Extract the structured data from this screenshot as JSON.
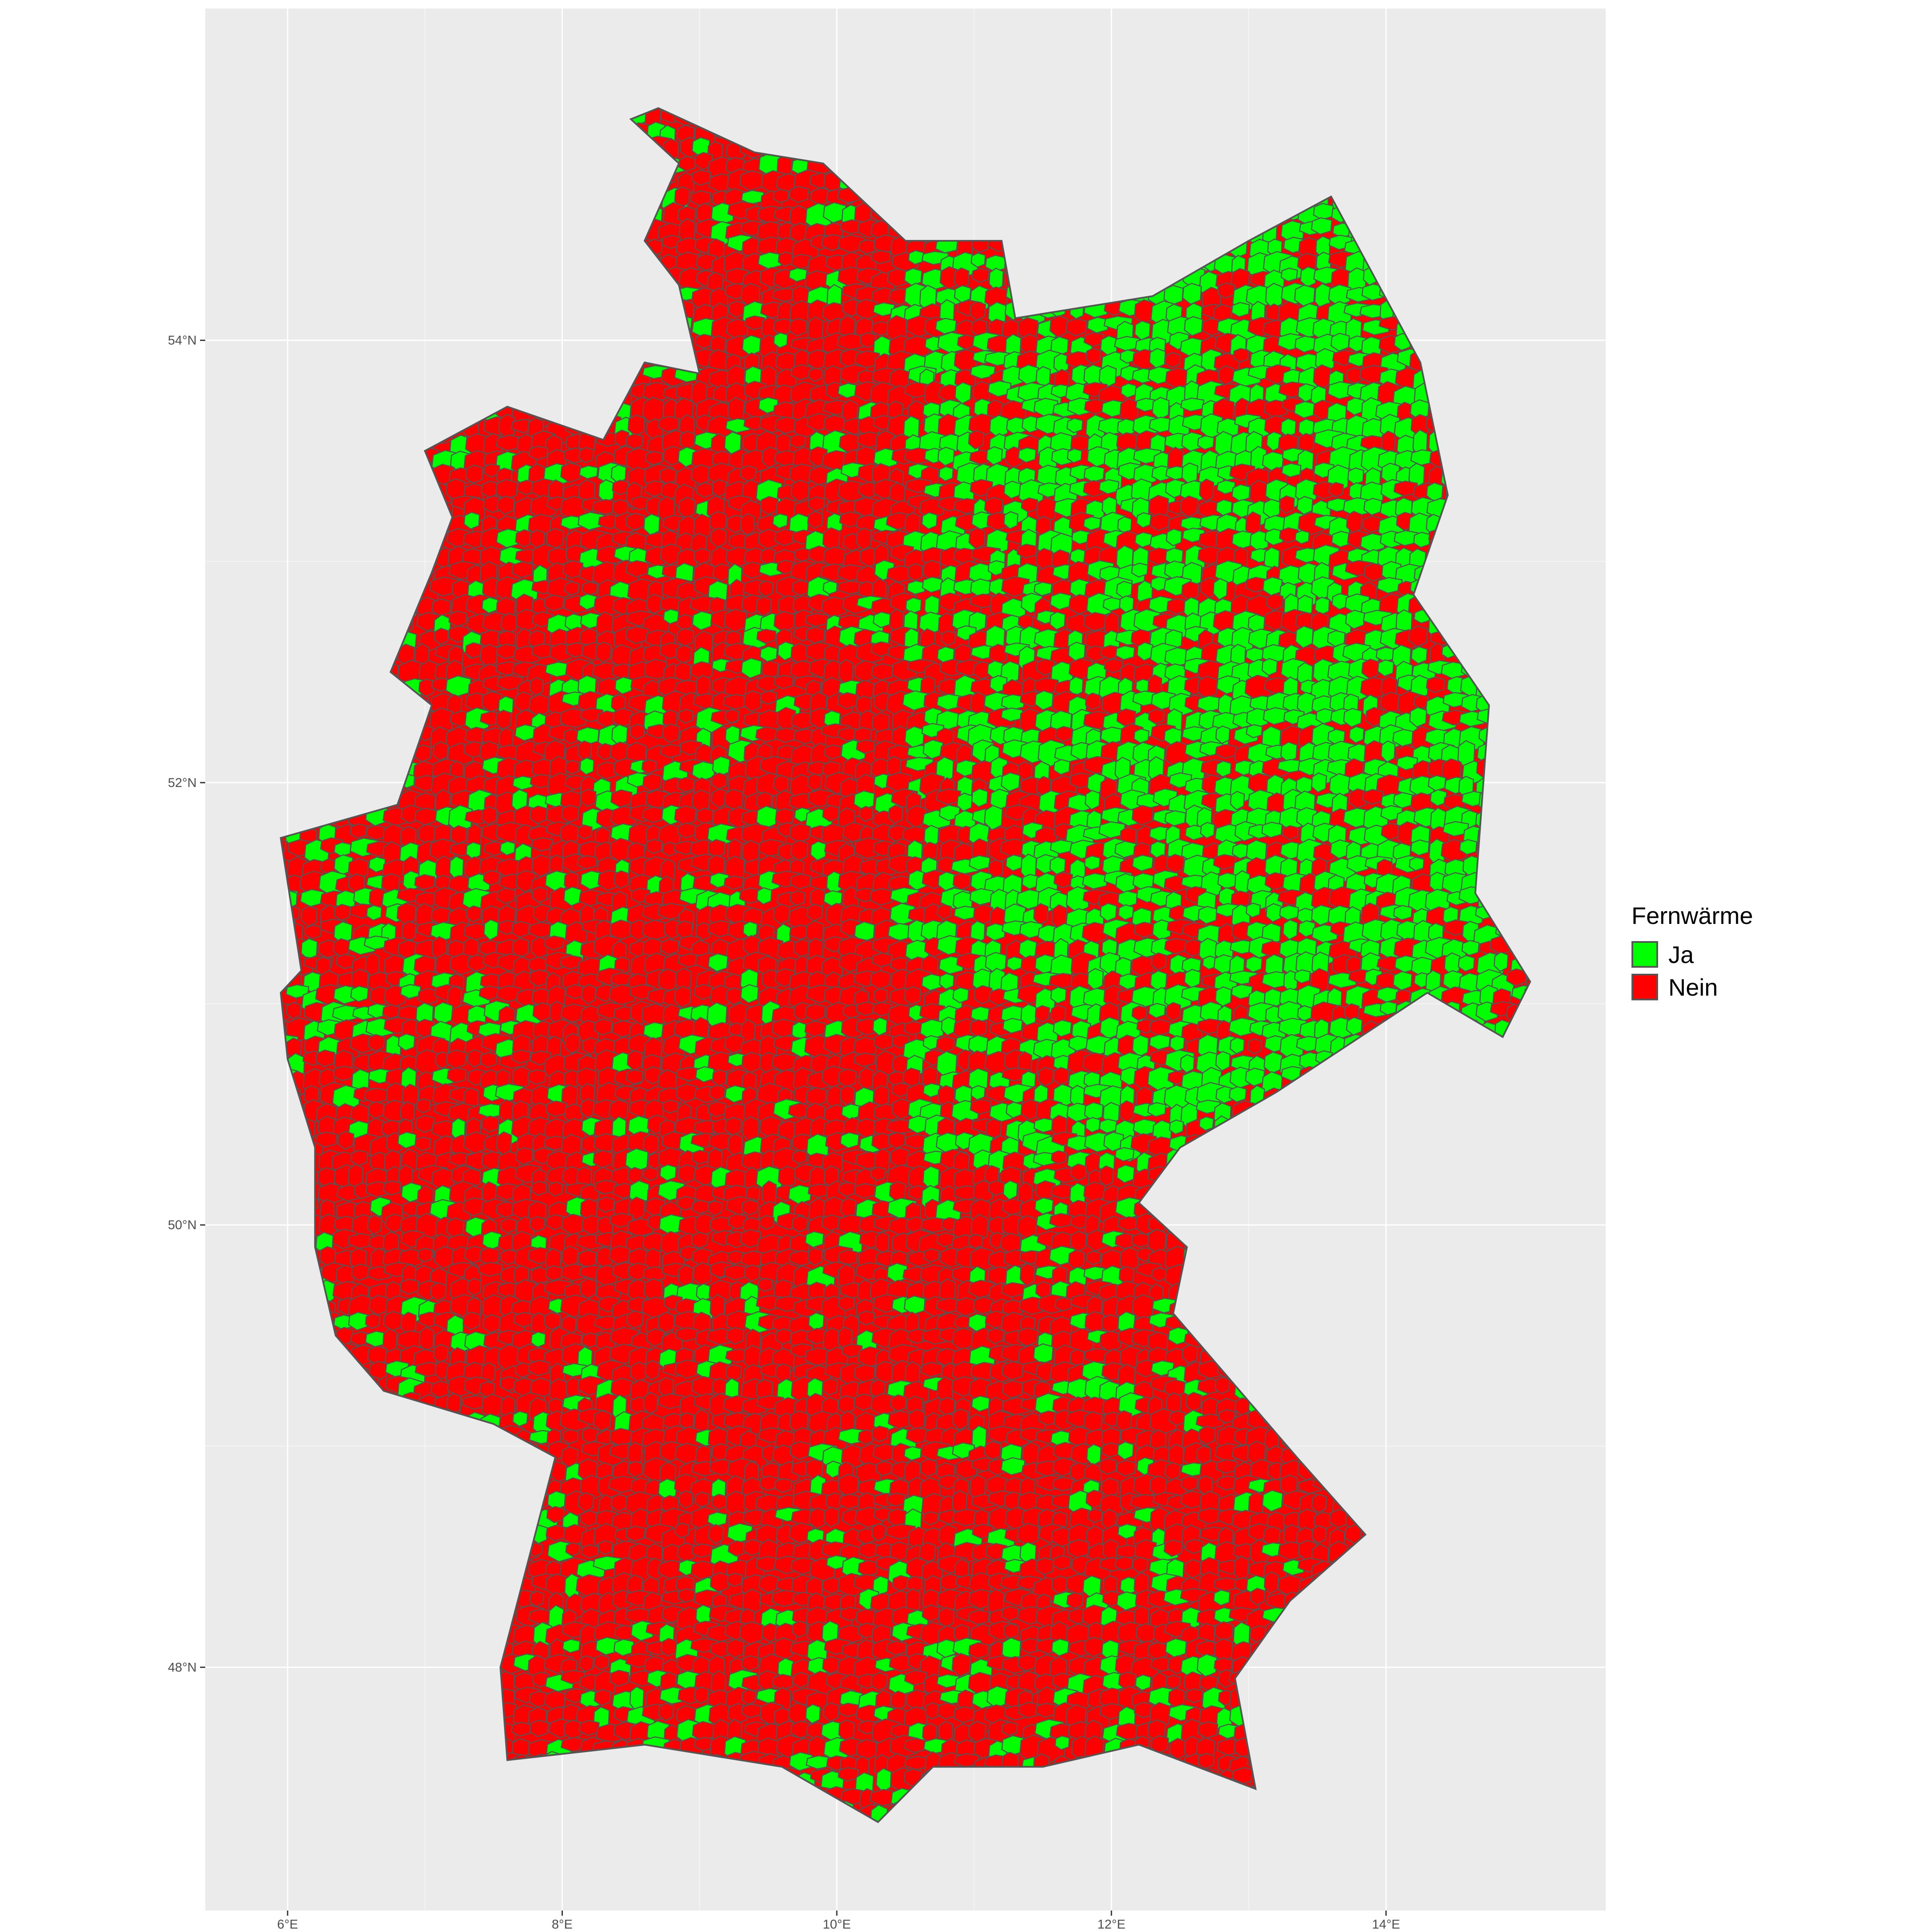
{
  "chart_data": {
    "type": "map",
    "region": "Germany",
    "unit_label": "Gemeinden",
    "legend": {
      "title": "Fernwärme",
      "entries": [
        {
          "label": "Ja",
          "color": "#00ff00"
        },
        {
          "label": "Nein",
          "color": "#ff0000"
        }
      ]
    },
    "x_axis": {
      "ticks": [
        "6°E",
        "8°E",
        "10°E",
        "12°E",
        "14°E"
      ],
      "tick_values": [
        6,
        8,
        10,
        12,
        14
      ],
      "range": [
        5.4,
        15.6
      ]
    },
    "y_axis": {
      "ticks": [
        "48°N",
        "50°N",
        "52°N",
        "54°N"
      ],
      "tick_values": [
        48,
        50,
        52,
        54
      ],
      "range": [
        46.9,
        55.5
      ]
    },
    "background_color": "#ebebeb",
    "grid": true,
    "border_color": "#555555",
    "legend_position": "right",
    "dominant_pattern": {
      "north_west_and_south": "Nein",
      "north_east_and_east": "Ja"
    }
  }
}
